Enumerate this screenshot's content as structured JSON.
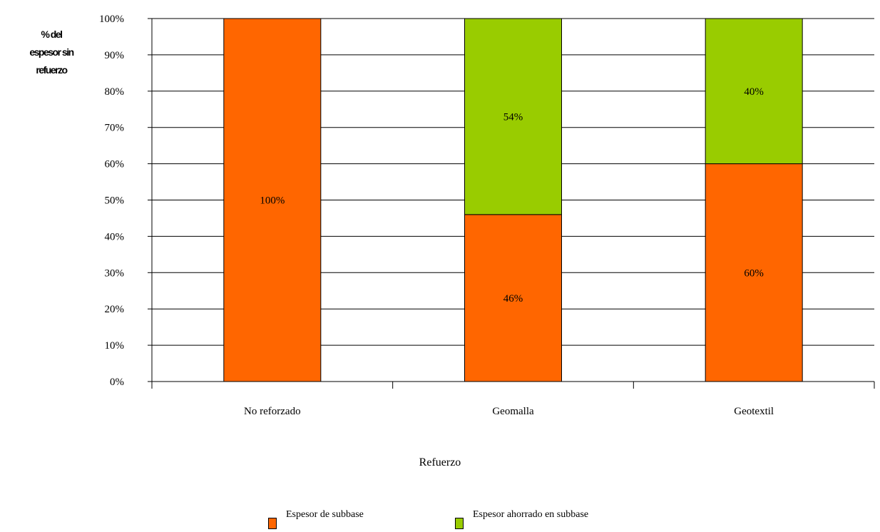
{
  "chart_data": {
    "type": "bar",
    "stacked": true,
    "categories": [
      "No reforzado",
      "Geomalla",
      "Geotextil"
    ],
    "series": [
      {
        "name": "Espesor de subbase",
        "color": "#FF6600",
        "values": [
          100,
          46,
          60
        ],
        "labels": [
          "100%",
          "46%",
          "60%"
        ]
      },
      {
        "name": "Espesor ahorrado en subbase",
        "color": "#99CC00",
        "values": [
          0,
          54,
          40
        ],
        "labels": [
          "",
          "54%",
          "40%"
        ]
      }
    ],
    "ylabel_lines": [
      "% del",
      "espesor sin",
      "refuerzo"
    ],
    "xlabel": "Refuerzo",
    "ylim": [
      0,
      100
    ],
    "yticks": [
      "0%",
      "10%",
      "20%",
      "30%",
      "40%",
      "50%",
      "60%",
      "70%",
      "80%",
      "90%",
      "100%"
    ],
    "grid": true,
    "legend_position": "bottom"
  }
}
